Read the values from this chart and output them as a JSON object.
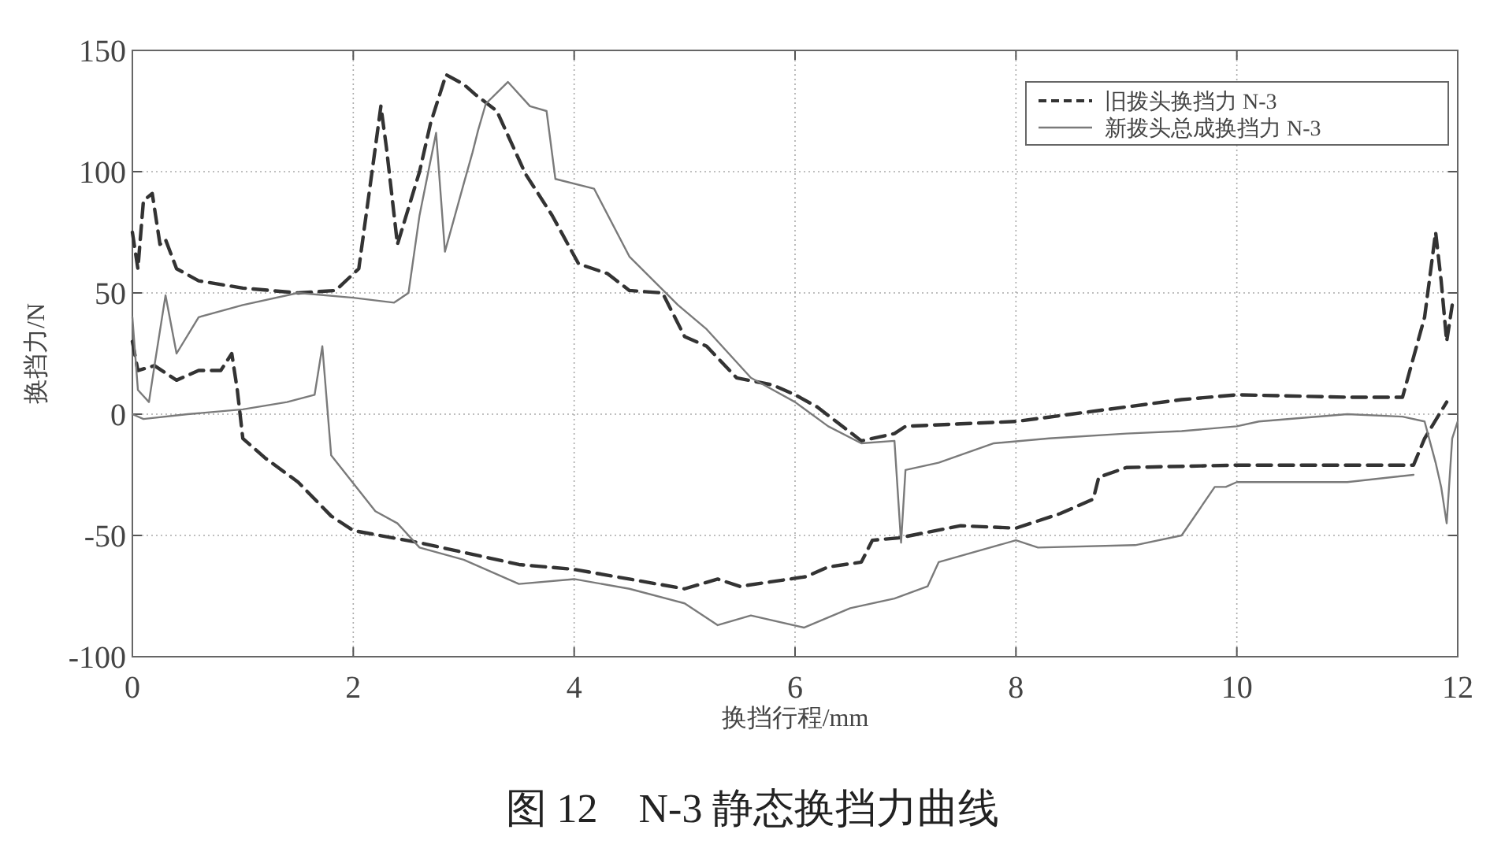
{
  "chart_data": {
    "type": "line",
    "title": "图 12　N-3 静态换挡力曲线",
    "xlabel": "换挡行程/mm",
    "ylabel": "换挡力/N",
    "xlim": [
      0,
      12
    ],
    "ylim": [
      -100,
      150
    ],
    "xticks": [
      0,
      2,
      4,
      6,
      8,
      10,
      12
    ],
    "yticks": [
      -100,
      -50,
      0,
      50,
      100,
      150
    ],
    "grid": true,
    "legend": "top right",
    "series": [
      {
        "name": "旧拨头换挡力 N-3",
        "color": "#333333",
        "line_style": "dashed",
        "x": [
          0,
          0.05,
          0.1,
          0.18,
          0.25,
          0.3,
          0.4,
          0.6,
          1,
          1.5,
          1.84,
          2.05,
          2.2,
          2.25,
          2.3,
          2.4,
          2.6,
          2.7,
          2.84,
          3.0,
          3.1,
          3.3,
          3.56,
          3.8,
          4.04,
          4.3,
          4.5,
          4.8,
          5.0,
          5.2,
          5.47,
          5.8,
          6.0,
          6.2,
          6.6,
          6.9,
          7.0,
          7.5,
          8.0,
          8.5,
          9.0,
          9.5,
          10.0,
          11.0,
          11.5,
          11.7,
          11.8,
          11.85,
          11.9,
          11.95
        ],
        "values": [
          75,
          60,
          88,
          91,
          70,
          72,
          60,
          55,
          52,
          50,
          51,
          60,
          110,
          127,
          110,
          70,
          100,
          120,
          140,
          136,
          132,
          125,
          99,
          82,
          62,
          58,
          51,
          50,
          32,
          28,
          15,
          12,
          8,
          3,
          -11,
          -8,
          -5,
          -4,
          -3,
          0,
          3,
          6,
          8,
          7,
          7,
          40,
          75,
          55,
          30,
          45
        ]
      },
      {
        "color": "#333333",
        "line_style": "dashed",
        "x": [
          0,
          0.05,
          0.2,
          0.4,
          0.6,
          0.8,
          0.9,
          0.95,
          1.0,
          1.2,
          1.5,
          1.8,
          2.0,
          2.6,
          3.0,
          3.5,
          4.0,
          4.5,
          5.0,
          5.3,
          5.5,
          6.1,
          6.3,
          6.6,
          6.7,
          6.94,
          7.5,
          8.0,
          8.4,
          8.7,
          8.75,
          9.0,
          10.0,
          11.0,
          11.6,
          11.7,
          11.9
        ],
        "values": [
          30,
          18,
          20,
          14,
          18,
          18,
          25,
          10,
          -10,
          -18,
          -28,
          -42,
          -48,
          -53,
          -57,
          -62,
          -64,
          -68,
          -72,
          -68,
          -71,
          -67,
          -63,
          -61,
          -52,
          -51,
          -46,
          -47,
          -41,
          -35,
          -26,
          -22,
          -21,
          -21,
          -21,
          -10,
          5
        ]
      },
      {
        "name": "新拨头总成换挡力 N-3",
        "color": "#7a7a7a",
        "line_style": "solid",
        "x": [
          0,
          0.05,
          0.15,
          0.2,
          0.3,
          0.4,
          0.6,
          1,
          1.5,
          2.0,
          2.37,
          2.5,
          2.6,
          2.75,
          2.83,
          3.0,
          3.08,
          3.13,
          3.2,
          3.4,
          3.6,
          3.75,
          3.83,
          4.18,
          4.5,
          4.94,
          5.2,
          5.6,
          6.0,
          6.3,
          6.6,
          6.9,
          6.96,
          7.0,
          7.3,
          7.8,
          8.3,
          9.0,
          9.5,
          10.0,
          10.2,
          11.0,
          11.5,
          11.7,
          11.8,
          11.85,
          11.9,
          11.95,
          12
        ],
        "values": [
          40,
          10,
          5,
          20,
          49,
          25,
          40,
          45,
          50,
          48,
          46,
          50,
          82,
          116,
          67,
          95,
          108,
          117,
          128,
          137,
          127,
          125,
          97,
          93,
          65,
          45,
          35,
          15,
          5,
          -5,
          -12,
          -11,
          -53,
          -23,
          -20,
          -12,
          -10,
          -8,
          -7,
          -5,
          -3,
          0,
          -1,
          -3,
          -20,
          -30,
          -45,
          -10,
          -3
        ]
      },
      {
        "color": "#7a7a7a",
        "line_style": "solid",
        "x": [
          0,
          0.1,
          0.5,
          1.0,
          1.4,
          1.65,
          1.72,
          1.8,
          2.2,
          2.4,
          2.6,
          3.0,
          3.5,
          4.0,
          4.5,
          5.0,
          5.3,
          5.6,
          6.08,
          6.5,
          6.9,
          7.2,
          7.3,
          8.0,
          8.2,
          9.08,
          9.5,
          9.8,
          9.9,
          10.0,
          11.0,
          11.6
        ],
        "values": [
          0,
          -2,
          0,
          2,
          5,
          8,
          28,
          -17,
          -40,
          -45,
          -55,
          -60,
          -70,
          -68,
          -72,
          -78,
          -87,
          -83,
          -88,
          -80,
          -76,
          -71,
          -61,
          -52,
          -55,
          -54,
          -50,
          -30,
          -30,
          -28,
          -28,
          -25
        ]
      }
    ]
  }
}
